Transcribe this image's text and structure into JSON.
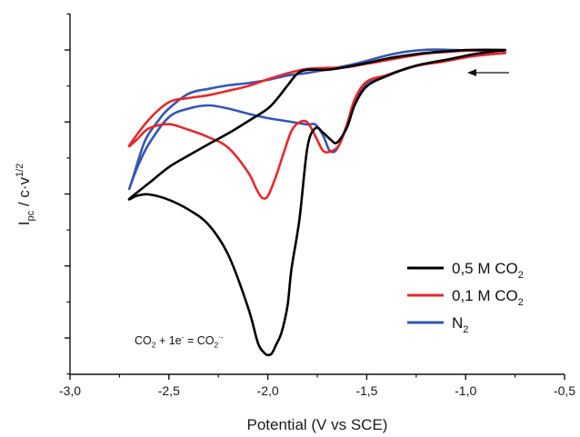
{
  "chart_data": {
    "type": "line",
    "xlabel": "Potential (V vs SCE)",
    "ylabel": {
      "I": "I",
      "pc": "pc",
      "mid": " / c·v",
      "sup": "1/2"
    },
    "xlim": [
      -3.0,
      -0.5
    ],
    "ylim": [
      0,
      1
    ],
    "x_ticks": [
      "-3,0",
      "-2,5",
      "-2,0",
      "-1,5",
      "-1,0",
      "-0,5"
    ],
    "x_tick_values": [
      -3.0,
      -2.5,
      -2.0,
      -1.5,
      -1.0,
      -0.5
    ],
    "y_tick_labels_shown": false,
    "grid": false,
    "legend_position": "lower-right",
    "scan_arrow_direction": "left",
    "annotation": {
      "base": "CO",
      "sub1": "2",
      "plus": " + 1e",
      "sup1": "-",
      "eq": " = CO",
      "sub2": "2",
      "sup2": "·-"
    },
    "series": [
      {
        "name": {
          "base": "0,5 M CO",
          "sub": "2"
        },
        "color": "#000000",
        "x": [
          -0.8,
          -0.95,
          -1.1,
          -1.25,
          -1.4,
          -1.5,
          -1.56,
          -1.6,
          -1.65,
          -1.68,
          -1.72,
          -1.76,
          -1.8,
          -1.84,
          -1.88,
          -1.9,
          -1.93,
          -1.96,
          -1.98,
          -2.0,
          -2.02,
          -2.05,
          -2.1,
          -2.2,
          -2.3,
          -2.4,
          -2.5,
          -2.6,
          -2.66,
          -2.7,
          -2.6,
          -2.5,
          -2.4,
          -2.3,
          -2.2,
          -2.1,
          -2.0,
          -1.95,
          -1.9,
          -1.85,
          -1.8,
          -1.7,
          -1.6,
          -1.5,
          -1.4,
          -1.3,
          -1.2,
          -1.1,
          -1.0,
          -0.9,
          -0.8
        ],
        "y": [
          0.934,
          0.922,
          0.903,
          0.885,
          0.852,
          0.82,
          0.762,
          0.69,
          0.643,
          0.651,
          0.674,
          0.688,
          0.627,
          0.402,
          0.247,
          0.132,
          0.047,
          0.005,
          -0.02,
          -0.025,
          -0.017,
          0.013,
          0.125,
          0.29,
          0.385,
          0.432,
          0.463,
          0.48,
          0.476,
          0.466,
          0.516,
          0.566,
          0.603,
          0.638,
          0.672,
          0.71,
          0.75,
          0.783,
          0.823,
          0.86,
          0.872,
          0.872,
          0.881,
          0.893,
          0.907,
          0.917,
          0.925,
          0.93,
          0.934,
          0.935,
          0.934
        ]
      },
      {
        "name": {
          "base": "0,1 M CO",
          "sub": "2"
        },
        "color": "#e8282b",
        "x": [
          -0.8,
          -0.95,
          -1.1,
          -1.25,
          -1.4,
          -1.5,
          -1.56,
          -1.6,
          -1.64,
          -1.68,
          -1.72,
          -1.76,
          -1.8,
          -1.84,
          -1.88,
          -1.92,
          -1.96,
          -2.0,
          -2.03,
          -2.06,
          -2.1,
          -2.2,
          -2.3,
          -2.4,
          -2.5,
          -2.6,
          -2.66,
          -2.7,
          -2.6,
          -2.5,
          -2.4,
          -2.3,
          -2.2,
          -2.1,
          -2.0,
          -1.9,
          -1.8,
          -1.7,
          -1.6,
          -1.5,
          -1.4,
          -1.3,
          -1.2,
          -1.1,
          -1.0,
          -0.9,
          -0.8
        ],
        "y": [
          0.925,
          0.916,
          0.899,
          0.884,
          0.855,
          0.835,
          0.78,
          0.7,
          0.635,
          0.616,
          0.617,
          0.664,
          0.707,
          0.707,
          0.68,
          0.61,
          0.535,
          0.475,
          0.47,
          0.5,
          0.55,
          0.627,
          0.66,
          0.683,
          0.701,
          0.688,
          0.654,
          0.634,
          0.716,
          0.77,
          0.783,
          0.792,
          0.806,
          0.821,
          0.842,
          0.861,
          0.875,
          0.878,
          0.88,
          0.891,
          0.902,
          0.913,
          0.923,
          0.928,
          0.932,
          0.934,
          0.934
        ]
      },
      {
        "name": {
          "base": "N",
          "sub": "2"
        },
        "color": "#3556b3",
        "x": [
          -0.8,
          -0.95,
          -1.1,
          -1.25,
          -1.4,
          -1.5,
          -1.56,
          -1.6,
          -1.63,
          -1.66,
          -1.69,
          -1.72,
          -1.76,
          -1.8,
          -1.9,
          -2.0,
          -2.1,
          -2.2,
          -2.3,
          -2.4,
          -2.5,
          -2.6,
          -2.66,
          -2.7,
          -2.68,
          -2.62,
          -2.55,
          -2.5,
          -2.4,
          -2.3,
          -2.2,
          -2.1,
          -2.0,
          -1.9,
          -1.8,
          -1.7,
          -1.6,
          -1.5,
          -1.4,
          -1.3,
          -1.2,
          -1.1,
          -1.0,
          -0.9,
          -0.8
        ],
        "y": [
          0.925,
          0.916,
          0.903,
          0.885,
          0.855,
          0.83,
          0.773,
          0.7,
          0.648,
          0.616,
          0.62,
          0.665,
          0.7,
          0.7,
          0.71,
          0.72,
          0.734,
          0.75,
          0.76,
          0.75,
          0.723,
          0.64,
          0.565,
          0.498,
          0.536,
          0.65,
          0.715,
          0.75,
          0.797,
          0.812,
          0.823,
          0.83,
          0.84,
          0.854,
          0.862,
          0.873,
          0.885,
          0.9,
          0.917,
          0.929,
          0.935,
          0.935,
          0.933,
          0.932,
          0.932
        ]
      }
    ]
  }
}
